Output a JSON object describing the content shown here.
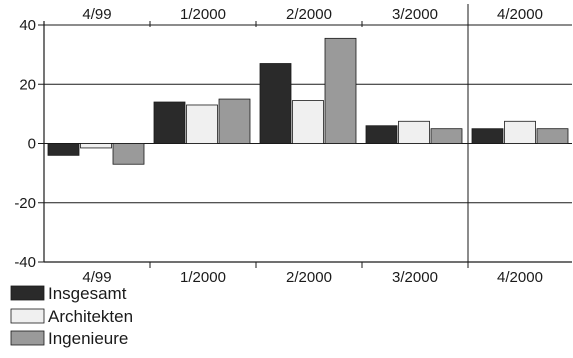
{
  "chart_data": {
    "type": "bar",
    "categories": [
      "4/99",
      "1/2000",
      "2/2000",
      "3/2000",
      "4/2000"
    ],
    "series": [
      {
        "name": "Insgesamt",
        "values": [
          -4,
          14,
          27,
          6,
          5
        ],
        "color": "#2a2a2a"
      },
      {
        "name": "Architekten",
        "values": [
          -1.5,
          13,
          14.5,
          7.5,
          7.5
        ],
        "color": "#f0f0f0"
      },
      {
        "name": "Ingenieure",
        "values": [
          -7,
          15,
          35.5,
          5,
          5
        ],
        "color": "#9a9a9a"
      }
    ],
    "ylim": [
      -40,
      40
    ],
    "yticks": [
      40,
      20,
      0,
      -20,
      -40
    ],
    "grid": true,
    "legend_position": "bottom-left"
  }
}
